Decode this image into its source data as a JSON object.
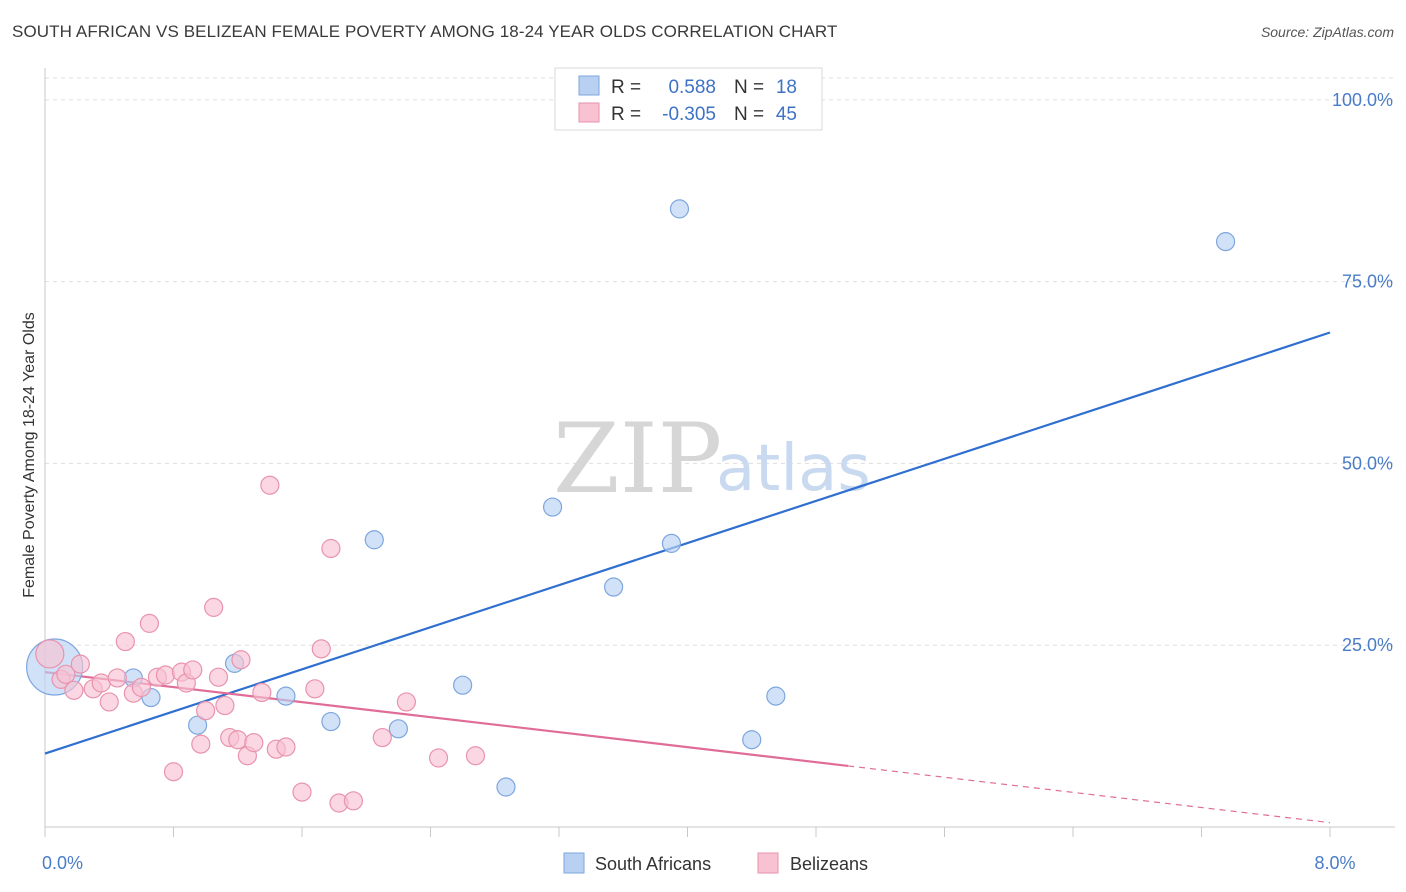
{
  "title": "SOUTH AFRICAN VS BELIZEAN FEMALE POVERTY AMONG 18-24 YEAR OLDS CORRELATION CHART",
  "source": "Source: ZipAtlas.com",
  "watermark": {
    "zip": "ZIP",
    "atlas": "atlas"
  },
  "colors": {
    "blue_fill": "#b8d1f3",
    "blue_stroke": "#7da6de",
    "blue_line": "#2f6fd0",
    "pink_fill": "#f8c2d2",
    "pink_stroke": "#e993ad",
    "pink_line": "#e06d97",
    "grid": "#dedede",
    "tick_text": "#4a7cc7"
  },
  "legend": {
    "rows": [
      {
        "r_label": "R =",
        "r_value": "0.588",
        "n_label": "N =",
        "n_value": "18",
        "series": "South Africans"
      },
      {
        "r_label": "R =",
        "r_value": "-0.305",
        "n_label": "N =",
        "n_value": "45",
        "series": "Belizeans"
      }
    ]
  },
  "chart_data": {
    "type": "scatter",
    "title": "SOUTH AFRICAN VS BELIZEAN FEMALE POVERTY AMONG 18-24 YEAR OLDS CORRELATION CHART",
    "xlabel": "",
    "ylabel": "Female Poverty Among 18-24 Year Olds",
    "xlim": [
      0,
      8
    ],
    "ylim": [
      0,
      103
    ],
    "x_ticks": [
      0,
      8
    ],
    "x_tick_labels": [
      "0.0%",
      "8.0%"
    ],
    "y_ticks": [
      25,
      50,
      75,
      100
    ],
    "y_tick_labels": [
      "25.0%",
      "50.0%",
      "75.0%",
      "100.0%"
    ],
    "grid": true,
    "legend_position": "top-center",
    "series": [
      {
        "name": "South Africans",
        "x": [
          0.06,
          0.55,
          0.66,
          0.95,
          1.18,
          1.5,
          1.78,
          2.05,
          2.2,
          2.6,
          2.87,
          3.16,
          3.54,
          3.9,
          3.95,
          4.4,
          4.55,
          7.35
        ],
        "y": [
          22.0,
          20.5,
          17.8,
          14.0,
          22.5,
          18.0,
          14.5,
          39.5,
          13.5,
          19.5,
          5.5,
          44.0,
          33.0,
          39.0,
          85.0,
          12.0,
          18.0,
          80.5
        ],
        "sizes": [
          28,
          9,
          9,
          9,
          9,
          9,
          9,
          9,
          9,
          9,
          9,
          9,
          9,
          9,
          9,
          9,
          9,
          9
        ],
        "trend": {
          "x": [
            0,
            8
          ],
          "y": [
            10.1,
            68.0
          ]
        }
      },
      {
        "name": "Belizeans",
        "x": [
          0.03,
          0.1,
          0.13,
          0.18,
          0.22,
          0.3,
          0.35,
          0.4,
          0.45,
          0.5,
          0.55,
          0.6,
          0.65,
          0.7,
          0.75,
          0.8,
          0.85,
          0.88,
          0.92,
          0.97,
          1.0,
          1.05,
          1.08,
          1.12,
          1.15,
          1.2,
          1.22,
          1.26,
          1.3,
          1.35,
          1.4,
          1.44,
          1.5,
          1.6,
          1.68,
          1.72,
          1.78,
          1.83,
          1.92,
          2.1,
          2.25,
          2.45,
          2.68,
          3.15,
          5.03
        ],
        "y": [
          23.8,
          20.3,
          21.0,
          18.8,
          22.4,
          19.0,
          19.8,
          17.2,
          20.5,
          25.5,
          18.4,
          19.2,
          28.0,
          20.6,
          20.9,
          7.6,
          21.3,
          19.8,
          21.6,
          11.4,
          16.0,
          30.2,
          20.6,
          16.7,
          12.3,
          12.0,
          23.0,
          9.8,
          11.6,
          18.5,
          47.0,
          10.7,
          11.0,
          4.8,
          19.0,
          24.5,
          38.3,
          3.3,
          3.6,
          12.3,
          17.2,
          9.5,
          9.8,
          0,
          0
        ],
        "sizes": [
          14,
          9,
          9,
          9,
          9,
          9,
          9,
          9,
          9,
          9,
          9,
          9,
          9,
          9,
          9,
          9,
          9,
          9,
          9,
          9,
          9,
          9,
          9,
          9,
          9,
          9,
          9,
          9,
          9,
          9,
          9,
          9,
          9,
          9,
          9,
          9,
          9,
          9,
          9,
          9,
          9,
          9,
          9,
          0,
          0
        ],
        "trend": {
          "x": [
            0,
            5.0
          ],
          "y": [
            21.3,
            8.4
          ]
        },
        "trend_extension": {
          "x": [
            5.0,
            8
          ],
          "y": [
            8.4,
            0.6
          ]
        }
      }
    ]
  },
  "bottom_legend": [
    "South Africans",
    "Belizeans"
  ]
}
